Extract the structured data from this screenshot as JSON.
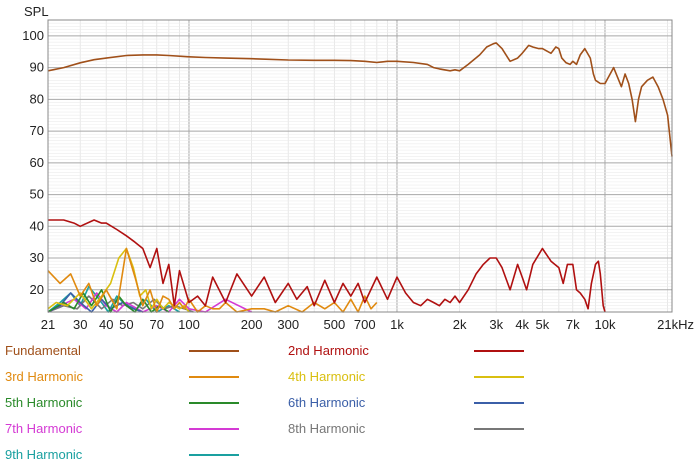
{
  "chart_data": {
    "type": "line",
    "ylabel": "SPL",
    "xunit": "Hz",
    "x_scale": "log",
    "xlim": [
      21,
      21000
    ],
    "ylim": [
      13,
      105
    ],
    "grid": true,
    "y_ticks": [
      20,
      30,
      40,
      50,
      60,
      70,
      80,
      90,
      100
    ],
    "x_ticks": [
      {
        "value": 21,
        "label": "21"
      },
      {
        "value": 30,
        "label": "30"
      },
      {
        "value": 40,
        "label": "40"
      },
      {
        "value": 50,
        "label": "50"
      },
      {
        "value": 70,
        "label": "70"
      },
      {
        "value": 100,
        "label": "100"
      },
      {
        "value": 200,
        "label": "200"
      },
      {
        "value": 300,
        "label": "300"
      },
      {
        "value": 500,
        "label": "500"
      },
      {
        "value": 700,
        "label": "700"
      },
      {
        "value": 1000,
        "label": "1k"
      },
      {
        "value": 2000,
        "label": "2k"
      },
      {
        "value": 3000,
        "label": "3k"
      },
      {
        "value": 4000,
        "label": "4k"
      },
      {
        "value": 5000,
        "label": "5k"
      },
      {
        "value": 7000,
        "label": "7k"
      },
      {
        "value": 10000,
        "label": "10k"
      },
      {
        "value": 21000,
        "label": "21kHz"
      }
    ],
    "legend_position": "bottom",
    "series": [
      {
        "name": "Fundamental",
        "color": "#a0501a",
        "x": [
          21,
          25,
          30,
          35,
          40,
          50,
          60,
          70,
          80,
          100,
          120,
          150,
          200,
          300,
          400,
          500,
          600,
          700,
          800,
          900,
          1000,
          1200,
          1400,
          1500,
          1600,
          1800,
          1900,
          2000,
          2200,
          2500,
          2700,
          2900,
          3000,
          3200,
          3500,
          3800,
          4000,
          4300,
          4500,
          4800,
          5000,
          5500,
          5800,
          6000,
          6200,
          6500,
          6800,
          7000,
          7300,
          7600,
          8000,
          8500,
          8800,
          9000,
          9500,
          10000,
          11000,
          12000,
          12500,
          13000,
          13500,
          14000,
          14500,
          15000,
          16000,
          17000,
          18000,
          19000,
          20000,
          21000
        ],
        "values": [
          89,
          90,
          91.5,
          92.5,
          93,
          93.8,
          94,
          94,
          93.8,
          93.4,
          93.2,
          93,
          92.8,
          92.4,
          92.3,
          92.3,
          92.2,
          92,
          91.6,
          92,
          92,
          91.6,
          91,
          90,
          89.6,
          89,
          89.3,
          89,
          91,
          94,
          96.5,
          97.5,
          97.8,
          96,
          92,
          93,
          94.5,
          97,
          96.5,
          96,
          96,
          94.5,
          96.5,
          96,
          93,
          91.5,
          91,
          92,
          91,
          94,
          96,
          93,
          88,
          86,
          85,
          85,
          90,
          84,
          88,
          85,
          80,
          73,
          80,
          84,
          86,
          87,
          84,
          80,
          75,
          62
        ]
      },
      {
        "name": "2nd Harmonic",
        "color": "#b01010",
        "x": [
          21,
          25,
          28,
          30,
          35,
          38,
          40,
          45,
          50,
          55,
          60,
          65,
          70,
          75,
          80,
          85,
          90,
          100,
          110,
          120,
          130,
          150,
          170,
          200,
          230,
          260,
          300,
          330,
          370,
          400,
          450,
          500,
          550,
          600,
          650,
          700,
          800,
          900,
          1000,
          1100,
          1200,
          1300,
          1400,
          1500,
          1600,
          1700,
          1800,
          1900,
          2000,
          2200,
          2400,
          2600,
          2800,
          3000,
          3200,
          3500,
          3800,
          4000,
          4200,
          4500,
          5000,
          5500,
          6000,
          6300,
          6600,
          7000,
          7300,
          7600,
          8000,
          8300,
          8600,
          9000,
          9300,
          9500,
          9800,
          10000
        ],
        "values": [
          42,
          42,
          41,
          40,
          42,
          41,
          41,
          39,
          37,
          35,
          33,
          27,
          33,
          22,
          28,
          15,
          26,
          16,
          18,
          15,
          24,
          16,
          25,
          18,
          24,
          16,
          22,
          17,
          21,
          15,
          23,
          16,
          22,
          18,
          22,
          16,
          24,
          17,
          24,
          19,
          16,
          15,
          17,
          16,
          15,
          17,
          16,
          18,
          16,
          20,
          25,
          28,
          30,
          30,
          27,
          20,
          28,
          24,
          20,
          28,
          33,
          29,
          27,
          22,
          28,
          28,
          20,
          19,
          17,
          14,
          22,
          28,
          29,
          25,
          15,
          13
        ]
      },
      {
        "name": "3rd Harmonic",
        "color": "#e08a10",
        "x": [
          21,
          24,
          27,
          30,
          33,
          36,
          40,
          45,
          50,
          55,
          60,
          65,
          70,
          75,
          80,
          85,
          90,
          95,
          100,
          110,
          120,
          130,
          140,
          150,
          170,
          200,
          230,
          260,
          300,
          350,
          400,
          450,
          500,
          550,
          600,
          650,
          700,
          750,
          800
        ],
        "values": [
          26,
          22,
          25,
          18,
          22,
          15,
          20,
          14,
          33,
          24,
          15,
          20,
          13,
          18,
          17,
          14,
          16,
          14,
          17,
          13,
          15,
          14,
          14,
          16,
          13,
          14,
          14,
          13,
          15,
          13,
          16,
          14,
          16,
          13,
          17,
          13,
          18,
          14,
          16
        ]
      },
      {
        "name": "4th Harmonic",
        "color": "#d9bf10",
        "x": [
          21,
          23,
          26,
          30,
          34,
          38,
          42,
          46,
          50,
          54,
          58,
          62,
          66,
          70,
          75,
          80,
          85,
          90,
          95,
          100
        ],
        "values": [
          14,
          16,
          15,
          19,
          14,
          18,
          22,
          30,
          33,
          27,
          18,
          20,
          14,
          17,
          14,
          16,
          15,
          14,
          15,
          13
        ]
      },
      {
        "name": "5th Harmonic",
        "color": "#2a8a2a",
        "x": [
          21,
          25,
          28,
          31,
          34,
          38,
          42,
          46,
          50,
          55,
          60,
          66,
          72,
          80
        ],
        "values": [
          13,
          16,
          14,
          19,
          15,
          20,
          13,
          18,
          15,
          13,
          17,
          13,
          15,
          13
        ]
      },
      {
        "name": "6th Harmonic",
        "color": "#3b5fa8",
        "x": [
          21,
          24,
          27,
          30,
          34,
          38,
          42,
          48,
          54,
          60
        ],
        "values": [
          13,
          15,
          19,
          16,
          13,
          17,
          14,
          16,
          14,
          13
        ]
      },
      {
        "name": "7th Harmonic",
        "color": "#d43ad4",
        "x": [
          21,
          24,
          28,
          32,
          36,
          40,
          45,
          50,
          60,
          70,
          80,
          90,
          100,
          120,
          150,
          200
        ],
        "values": [
          13,
          15,
          17,
          14,
          19,
          15,
          13,
          16,
          13,
          15,
          13,
          17,
          14,
          13,
          17,
          13
        ]
      },
      {
        "name": "8th Harmonic",
        "color": "#777777",
        "x": [
          21,
          25,
          29,
          33,
          38,
          43,
          48,
          54,
          60,
          68,
          76,
          85,
          95,
          105
        ],
        "values": [
          13,
          15,
          14,
          18,
          14,
          17,
          15,
          16,
          14,
          17,
          14,
          15,
          14,
          13
        ]
      },
      {
        "name": "9th Harmonic",
        "color": "#1aa0a0",
        "x": [
          21,
          24,
          27,
          30,
          33,
          37,
          41,
          45,
          50,
          56,
          62,
          70,
          80,
          90
        ],
        "values": [
          13,
          16,
          19,
          15,
          21,
          17,
          13,
          18,
          15,
          14,
          17,
          13,
          15,
          13
        ]
      }
    ]
  }
}
